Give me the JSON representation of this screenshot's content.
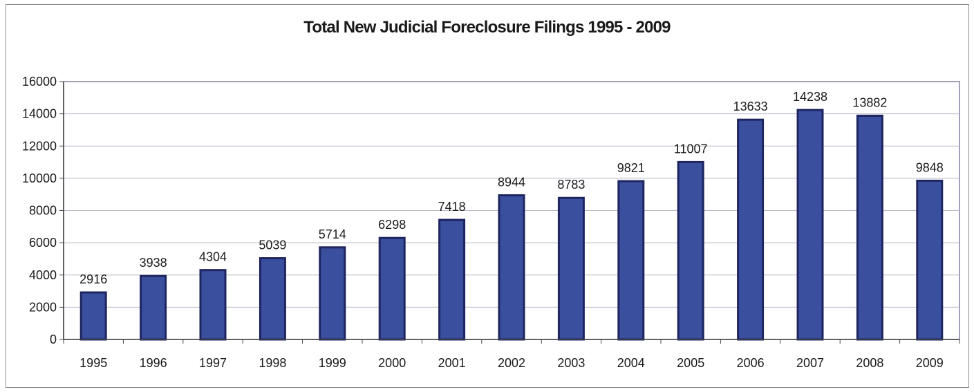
{
  "chart_data": {
    "type": "bar",
    "title": "Total New Judicial Foreclosure Filings 1995 - 2009",
    "xlabel": "",
    "ylabel": "",
    "categories": [
      "1995",
      "1996",
      "1997",
      "1998",
      "1999",
      "2000",
      "2001",
      "2002",
      "2003",
      "2004",
      "2005",
      "2006",
      "2007",
      "2008",
      "2009"
    ],
    "values": [
      2916,
      3938,
      4304,
      5039,
      5714,
      6298,
      7418,
      8944,
      8783,
      9821,
      11007,
      13633,
      14238,
      13882,
      9848
    ],
    "data_labels": [
      "2916",
      "3938",
      "4304",
      "5039",
      "5714",
      "6298",
      "7418",
      "8944",
      "8783",
      "9821",
      "11007",
      "13633",
      "14238",
      "13882",
      "9848"
    ],
    "ylim": [
      0,
      16000
    ],
    "yticks": [
      "0",
      "2000",
      "4000",
      "6000",
      "8000",
      "10000",
      "12000",
      "14000",
      "16000"
    ],
    "grid": true,
    "legend": "none",
    "colors": {
      "bar_fill": "#3a4f9e",
      "bar_edge": "#1e2560",
      "grid": "#b8b8c8",
      "plot_border": "#8080a0"
    }
  }
}
